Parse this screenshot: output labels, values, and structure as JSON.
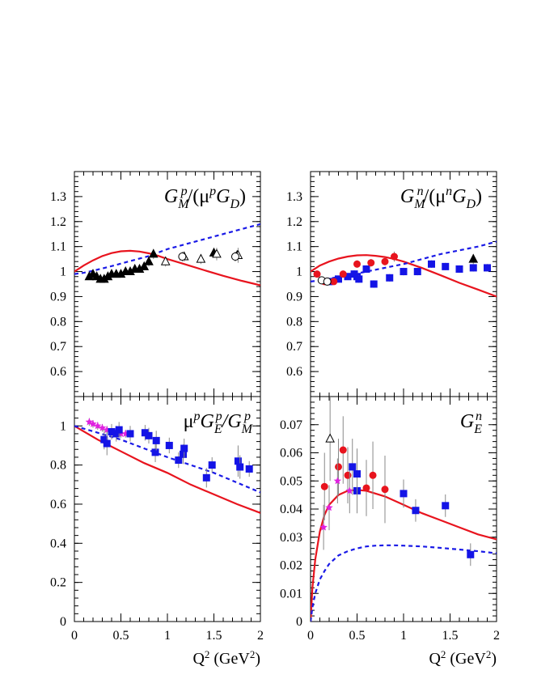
{
  "chart_data": [
    {
      "id": "gmp",
      "type": "scatter",
      "title": "G_M^p/(μ^p G_D)",
      "title_parts": {
        "main": "G",
        "sub1": "M",
        "sup1": "p",
        "rest": "/(μ",
        "sup2": "p",
        "g2": "G",
        "sub2": "D",
        "close": ")"
      },
      "xlim": [
        0,
        2
      ],
      "ylim": [
        0.5,
        1.4
      ],
      "yticks": [
        0.6,
        0.7,
        0.8,
        0.9,
        1,
        1.1,
        1.2,
        1.3
      ],
      "ytick_labels": [
        "0.6",
        "0.7",
        "0.8",
        "0.9",
        "1",
        "1.1",
        "1.2",
        "1.3"
      ],
      "grid": false,
      "curves": [
        {
          "style": "solid",
          "color": "#e8141e",
          "x": [
            0,
            0.05,
            0.1,
            0.2,
            0.3,
            0.4,
            0.5,
            0.6,
            0.7,
            0.8,
            0.9,
            1.0,
            1.2,
            1.4,
            1.6,
            1.8,
            2.0
          ],
          "y": [
            1.0,
            1.012,
            1.024,
            1.045,
            1.062,
            1.074,
            1.081,
            1.083,
            1.08,
            1.073,
            1.063,
            1.05,
            1.028,
            1.005,
            0.983,
            0.963,
            0.945
          ]
        },
        {
          "style": "dashed",
          "color": "#1a1ae6",
          "x": [
            0,
            0.1,
            0.2,
            0.4,
            0.6,
            0.8,
            1.0,
            1.2,
            1.4,
            1.6,
            1.8,
            2.0
          ],
          "y": [
            0.99,
            0.995,
            1.003,
            1.022,
            1.042,
            1.062,
            1.09,
            1.11,
            1.13,
            1.15,
            1.17,
            1.19
          ]
        }
      ],
      "series": [
        {
          "marker": "triangle-filled",
          "color": "#000000",
          "points": [
            [
              0.16,
              0.98,
              0.01
            ],
            [
              0.2,
              0.99,
              0.01
            ],
            [
              0.24,
              0.98,
              0.01
            ],
            [
              0.28,
              0.97,
              0.01
            ],
            [
              0.32,
              0.97,
              0.01
            ],
            [
              0.36,
              0.98,
              0.01
            ],
            [
              0.4,
              0.99,
              0.01
            ],
            [
              0.45,
              0.99,
              0.01
            ],
            [
              0.5,
              0.99,
              0.012
            ],
            [
              0.55,
              1.0,
              0.012
            ],
            [
              0.6,
              1.0,
              0.012
            ],
            [
              0.65,
              1.01,
              0.012
            ],
            [
              0.7,
              1.01,
              0.012
            ],
            [
              0.75,
              1.02,
              0.015
            ],
            [
              0.8,
              1.04,
              0.02
            ],
            [
              0.85,
              1.07,
              0.02
            ],
            [
              1.5,
              1.075,
              0.02
            ],
            [
              1.75,
              1.065,
              0.02
            ]
          ]
        },
        {
          "marker": "triangle-open",
          "color": "#000000",
          "points": [
            [
              0.98,
              1.04,
              0.02
            ],
            [
              1.18,
              1.06,
              0.02
            ],
            [
              1.36,
              1.05,
              0.02
            ],
            [
              1.53,
              1.07,
              0.025
            ],
            [
              1.76,
              1.065,
              0.03
            ]
          ]
        },
        {
          "marker": "circle-open",
          "color": "#000000",
          "points": [
            [
              1.16,
              1.06,
              0.02
            ],
            [
              1.73,
              1.06,
              0.02
            ]
          ]
        }
      ]
    },
    {
      "id": "gmn",
      "type": "scatter",
      "title": "G_M^n/(μ^n G_D)",
      "title_parts": {
        "main": "G",
        "sub1": "M",
        "sup1": "n",
        "rest": "/(μ",
        "sup2": "n",
        "g2": "G",
        "sub2": "D",
        "close": ")"
      },
      "xlim": [
        0,
        2
      ],
      "ylim": [
        0.5,
        1.4
      ],
      "yticks": [
        0.6,
        0.7,
        0.8,
        0.9,
        1,
        1.1,
        1.2,
        1.3
      ],
      "ytick_labels": [
        "0.6",
        "0.7",
        "0.8",
        "0.9",
        "1",
        "1.1",
        "1.2",
        "1.3"
      ],
      "grid": false,
      "curves": [
        {
          "style": "solid",
          "color": "#e8141e",
          "x": [
            0,
            0.05,
            0.1,
            0.2,
            0.3,
            0.4,
            0.5,
            0.6,
            0.7,
            0.8,
            0.9,
            1.0,
            1.2,
            1.4,
            1.6,
            1.8,
            2.0
          ],
          "y": [
            1.0,
            1.012,
            1.024,
            1.04,
            1.052,
            1.06,
            1.065,
            1.066,
            1.063,
            1.058,
            1.05,
            1.04,
            1.014,
            0.985,
            0.955,
            0.928,
            0.9
          ]
        },
        {
          "style": "dashed",
          "color": "#1a1ae6",
          "x": [
            0,
            0.1,
            0.2,
            0.4,
            0.6,
            0.8,
            1.0,
            1.2,
            1.4,
            1.6,
            1.8,
            2.0
          ],
          "y": [
            0.96,
            0.965,
            0.972,
            0.985,
            1.0,
            1.015,
            1.03,
            1.05,
            1.07,
            1.085,
            1.1,
            1.12
          ]
        }
      ],
      "series": [
        {
          "marker": "square-filled",
          "color": "#1414e6",
          "points": [
            [
              0.2,
              0.96,
              0.01
            ],
            [
              0.3,
              0.97,
              0.01
            ],
            [
              0.4,
              0.98,
              0.01
            ],
            [
              0.47,
              0.99,
              0.015
            ],
            [
              0.5,
              0.98,
              0.015
            ],
            [
              0.52,
              0.97,
              0.015
            ],
            [
              0.6,
              1.01,
              0.015
            ],
            [
              0.68,
              0.95,
              0.015
            ],
            [
              0.85,
              0.975,
              0.015
            ],
            [
              1.0,
              1.0,
              0.015
            ],
            [
              1.15,
              1.0,
              0.015
            ],
            [
              1.3,
              1.03,
              0.015
            ],
            [
              1.45,
              1.02,
              0.015
            ],
            [
              1.6,
              1.01,
              0.015
            ],
            [
              1.75,
              1.015,
              0.015
            ],
            [
              1.9,
              1.015,
              0.015
            ]
          ]
        },
        {
          "marker": "circle-filled",
          "color": "#e8141e",
          "points": [
            [
              0.07,
              0.99,
              0.01
            ],
            [
              0.15,
              0.96,
              0.01
            ],
            [
              0.25,
              0.96,
              0.01
            ],
            [
              0.35,
              0.99,
              0.012
            ],
            [
              0.5,
              1.03,
              0.015
            ],
            [
              0.65,
              1.035,
              0.015
            ],
            [
              0.8,
              1.04,
              0.015
            ],
            [
              0.9,
              1.06,
              0.02
            ]
          ]
        },
        {
          "marker": "circle-open",
          "color": "#000000",
          "points": [
            [
              0.12,
              0.965,
              0.01
            ],
            [
              0.18,
              0.96,
              0.01
            ]
          ]
        },
        {
          "marker": "triangle-filled",
          "color": "#000000",
          "points": [
            [
              1.75,
              1.05,
              0.02
            ]
          ]
        }
      ]
    },
    {
      "id": "ratio",
      "type": "scatter",
      "title": "μ^p G_E^p/G_M^p",
      "title_parts": {
        "main": "μ",
        "sup1": "p",
        "g2": "G",
        "sub2": "E",
        "sup2": "p",
        "rest": "/G",
        "sub3": "M",
        "sup3": "p"
      },
      "xlim": [
        0,
        2
      ],
      "ylim": [
        0,
        1.15
      ],
      "yticks": [
        0,
        0.2,
        0.4,
        0.6,
        0.8,
        1
      ],
      "ytick_labels": [
        "0",
        "0.2",
        "0.4",
        "0.6",
        "0.8",
        "1"
      ],
      "xticks": [
        0,
        0.5,
        1,
        1.5,
        2
      ],
      "xtick_labels": [
        "0",
        "0.5",
        "1",
        "1.5",
        "2"
      ],
      "xlabel": "Q² (GeV²)",
      "grid": false,
      "curves": [
        {
          "style": "solid",
          "color": "#e8141e",
          "x": [
            0,
            0.25,
            0.5,
            0.75,
            1.0,
            1.25,
            1.5,
            1.75,
            2.0
          ],
          "y": [
            1.0,
            0.93,
            0.87,
            0.81,
            0.76,
            0.7,
            0.65,
            0.6,
            0.555
          ]
        },
        {
          "style": "dashed",
          "color": "#1a1ae6",
          "x": [
            0,
            0.25,
            0.5,
            0.75,
            1.0,
            1.25,
            1.5,
            1.75,
            2.0
          ],
          "y": [
            1.0,
            0.965,
            0.93,
            0.885,
            0.84,
            0.8,
            0.76,
            0.71,
            0.66
          ]
        }
      ],
      "series": [
        {
          "marker": "star",
          "color": "#e020e0",
          "points": [
            [
              0.16,
              1.02,
              0.02
            ],
            [
              0.2,
              1.01,
              0.02
            ],
            [
              0.25,
              1.0,
              0.02
            ],
            [
              0.3,
              0.99,
              0.02
            ],
            [
              0.35,
              0.98,
              0.02
            ],
            [
              0.4,
              0.975,
              0.02
            ],
            [
              0.45,
              0.97,
              0.02
            ],
            [
              0.5,
              0.96,
              0.02
            ],
            [
              0.55,
              0.96,
              0.02
            ]
          ]
        },
        {
          "marker": "square-filled",
          "color": "#1414e6",
          "points": [
            [
              0.32,
              0.93,
              0.05
            ],
            [
              0.35,
              0.91,
              0.06
            ],
            [
              0.4,
              0.97,
              0.04
            ],
            [
              0.45,
              0.96,
              0.04
            ],
            [
              0.48,
              0.98,
              0.04
            ],
            [
              0.6,
              0.96,
              0.04
            ],
            [
              0.76,
              0.965,
              0.04
            ],
            [
              0.8,
              0.95,
              0.04
            ],
            [
              0.87,
              0.865,
              0.05
            ],
            [
              0.88,
              0.925,
              0.05
            ],
            [
              1.02,
              0.9,
              0.04
            ],
            [
              1.12,
              0.825,
              0.04
            ],
            [
              1.17,
              0.855,
              0.05
            ],
            [
              1.18,
              0.885,
              0.05
            ],
            [
              1.42,
              0.735,
              0.05
            ],
            [
              1.48,
              0.8,
              0.04
            ],
            [
              1.76,
              0.82,
              0.08
            ],
            [
              1.78,
              0.79,
              0.06
            ],
            [
              1.88,
              0.78,
              0.04
            ]
          ]
        }
      ]
    },
    {
      "id": "gen",
      "type": "scatter",
      "title": "G_E^n",
      "title_parts": {
        "main": "G",
        "sub1": "E",
        "sup1": "n"
      },
      "xlim": [
        0,
        2
      ],
      "ylim": [
        0,
        0.08
      ],
      "yticks": [
        0,
        0.01,
        0.02,
        0.03,
        0.04,
        0.05,
        0.06,
        0.07
      ],
      "ytick_labels": [
        "0",
        "0.01",
        "0.02",
        "0.03",
        "0.04",
        "0.05",
        "0.06",
        "0.07"
      ],
      "xticks": [
        0,
        0.5,
        1,
        1.5,
        2
      ],
      "xtick_labels": [
        "0",
        "0.5",
        "1",
        "1.5",
        "2"
      ],
      "xlabel": "Q² (GeV²)",
      "grid": false,
      "curves": [
        {
          "style": "solid",
          "color": "#e8141e",
          "x": [
            0,
            0.02,
            0.05,
            0.1,
            0.15,
            0.2,
            0.3,
            0.4,
            0.5,
            0.6,
            0.7,
            0.8,
            1.0,
            1.2,
            1.4,
            1.6,
            1.8,
            2.0
          ],
          "y": [
            0,
            0.012,
            0.022,
            0.032,
            0.038,
            0.0415,
            0.045,
            0.0465,
            0.0468,
            0.0465,
            0.0455,
            0.0445,
            0.0415,
            0.0385,
            0.036,
            0.0335,
            0.031,
            0.0292
          ]
        },
        {
          "style": "dashed",
          "color": "#1a1ae6",
          "x": [
            0,
            0.02,
            0.05,
            0.1,
            0.15,
            0.2,
            0.3,
            0.4,
            0.5,
            0.6,
            0.7,
            0.8,
            0.9,
            1.0,
            1.2,
            1.4,
            1.6,
            1.8,
            2.0
          ],
          "y": [
            0,
            0.005,
            0.01,
            0.015,
            0.018,
            0.0205,
            0.0235,
            0.025,
            0.026,
            0.0267,
            0.027,
            0.0271,
            0.0271,
            0.027,
            0.0267,
            0.0262,
            0.0256,
            0.025,
            0.0243
          ]
        }
      ],
      "series": [
        {
          "marker": "circle-filled",
          "color": "#e8141e",
          "points": [
            [
              0.15,
              0.048,
              0.012
            ],
            [
              0.3,
              0.055,
              0.01
            ],
            [
              0.35,
              0.061,
              0.012
            ],
            [
              0.4,
              0.052,
              0.01
            ],
            [
              0.6,
              0.0475,
              0.01
            ],
            [
              0.67,
              0.052,
              0.012
            ],
            [
              0.8,
              0.047,
              0.012
            ]
          ]
        },
        {
          "marker": "triangle-open",
          "color": "#000000",
          "points": [
            [
              0.21,
              0.065,
              0.015
            ]
          ]
        },
        {
          "marker": "star",
          "color": "#e020e0",
          "points": [
            [
              0.14,
              0.0335,
              0.008
            ],
            [
              0.2,
              0.0405,
              0.008
            ],
            [
              0.29,
              0.05,
              0.008
            ],
            [
              0.42,
              0.0465,
              0.008
            ]
          ]
        },
        {
          "marker": "square-filled",
          "color": "#1414e6",
          "points": [
            [
              0.45,
              0.055,
              0.01
            ],
            [
              0.5,
              0.0465,
              0.008
            ],
            [
              0.5,
              0.0525,
              0.009
            ],
            [
              1.0,
              0.0455,
              0.005
            ],
            [
              1.13,
              0.0395,
              0.004
            ],
            [
              1.45,
              0.0412,
              0.004
            ],
            [
              1.72,
              0.0238,
              0.004
            ]
          ]
        }
      ]
    }
  ]
}
